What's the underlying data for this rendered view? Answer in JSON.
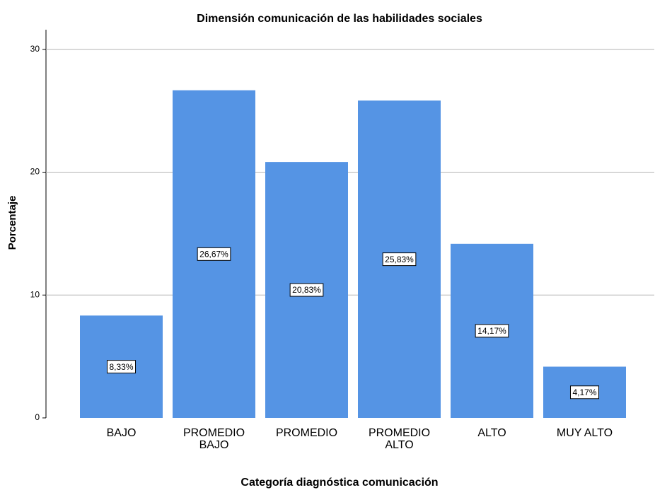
{
  "chart_data": {
    "type": "bar",
    "title": "Dimensión comunicación de las habilidades sociales",
    "x_label": "Categoría diagnóstica comunicación",
    "y_label": "Porcentaje",
    "categories": [
      "BAJO",
      "PROMEDIO BAJO",
      "PROMEDIO",
      "PROMEDIO ALTO",
      "ALTO",
      "MUY ALTO"
    ],
    "values": [
      8.33,
      26.67,
      20.83,
      25.83,
      14.17,
      4.17
    ],
    "value_labels": [
      "8,33%",
      "26,67%",
      "20,83%",
      "25,83%",
      "14,17%",
      "4,17%"
    ],
    "color": "#5594e4",
    "ylim": [
      0,
      31.6
    ],
    "yticks": [
      0,
      10,
      20,
      30
    ],
    "grid": true
  }
}
